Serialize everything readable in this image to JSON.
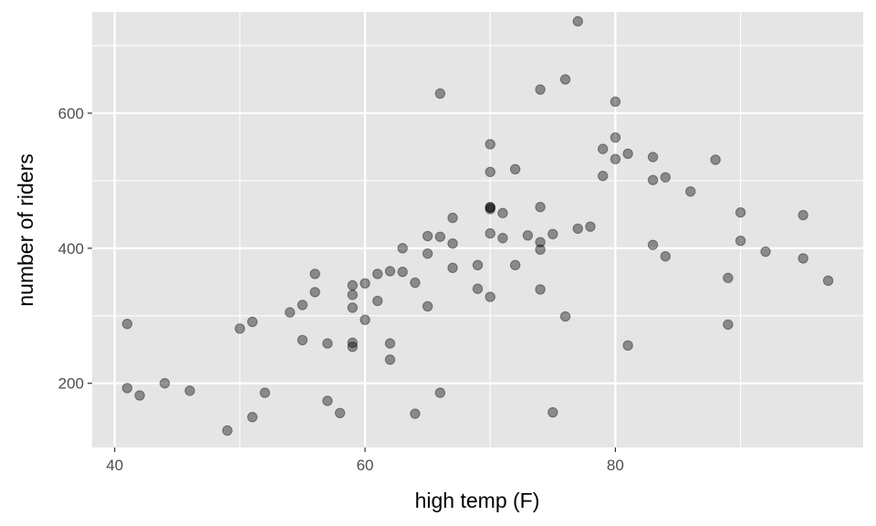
{
  "chart_data": {
    "type": "scatter",
    "title": "",
    "xlabel": "high temp (F)",
    "ylabel": "number of riders",
    "xlim": [
      38.2,
      99.8
    ],
    "ylim": [
      105,
      750
    ],
    "xticks": [
      40,
      60,
      80
    ],
    "yticks": [
      200,
      400,
      600
    ],
    "x_tick_labels": [
      "40",
      "60",
      "80"
    ],
    "y_tick_labels": [
      "200",
      "400",
      "600"
    ],
    "grid": true,
    "legend": "none",
    "colors": {
      "panel": "#e5e5e5",
      "grid_major": "#ffffff",
      "point": "#000000",
      "point_opacity": 0.4
    },
    "x": [
      41,
      41,
      42,
      44,
      46,
      49,
      50,
      51,
      51,
      52,
      54,
      55,
      55,
      56,
      56,
      57,
      57,
      58,
      59,
      59,
      59,
      59,
      59,
      60,
      60,
      61,
      61,
      62,
      62,
      62,
      63,
      63,
      64,
      64,
      65,
      65,
      65,
      66,
      66,
      66,
      67,
      67,
      67,
      69,
      69,
      70,
      70,
      70,
      70,
      70,
      70,
      70,
      71,
      71,
      72,
      72,
      73,
      74,
      74,
      74,
      74,
      74,
      75,
      75,
      76,
      76,
      77,
      77,
      78,
      79,
      79,
      80,
      80,
      80,
      81,
      81,
      83,
      83,
      83,
      84,
      84,
      86,
      88,
      89,
      89,
      90,
      90,
      92,
      95,
      95,
      97
    ],
    "y": [
      288,
      193,
      182,
      200,
      189,
      130,
      281,
      291,
      150,
      186,
      305,
      316,
      264,
      362,
      335,
      259,
      174,
      156,
      345,
      331,
      312,
      260,
      254,
      348,
      294,
      362,
      322,
      366,
      259,
      235,
      400,
      365,
      349,
      155,
      418,
      392,
      314,
      629,
      417,
      186,
      445,
      407,
      371,
      375,
      340,
      554,
      513,
      461,
      460,
      422,
      328,
      458,
      452,
      415,
      517,
      375,
      419,
      635,
      461,
      409,
      398,
      339,
      421,
      157,
      650,
      299,
      736,
      429,
      432,
      547,
      507,
      617,
      564,
      532,
      540,
      256,
      535,
      501,
      405,
      505,
      388,
      484,
      531,
      356,
      287,
      453,
      411,
      395,
      449,
      385,
      352
    ]
  }
}
